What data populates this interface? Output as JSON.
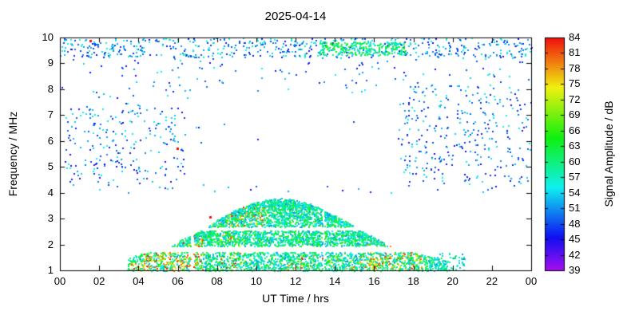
{
  "chart_data": {
    "type": "heatmap",
    "title": "2025-04-14",
    "xlabel": "UT Time / hrs",
    "ylabel": "Frequency / MHz",
    "x_range": [
      0,
      24
    ],
    "y_range": [
      1,
      10
    ],
    "x_ticks": {
      "values": [
        0,
        2,
        4,
        6,
        8,
        10,
        12,
        14,
        16,
        18,
        20,
        22,
        24
      ],
      "labels": [
        "00",
        "02",
        "04",
        "06",
        "08",
        "10",
        "12",
        "14",
        "16",
        "18",
        "20",
        "22",
        "00"
      ]
    },
    "y_ticks": {
      "values": [
        1,
        2,
        3,
        4,
        5,
        6,
        7,
        8,
        9,
        10
      ],
      "labels": [
        "1",
        "2",
        "3",
        "4",
        "5",
        "6",
        "7",
        "8",
        "9",
        "10"
      ]
    },
    "colorbar": {
      "label": "Signal Amplitude / dB",
      "min": 39,
      "max": 84,
      "ticks": [
        39,
        42,
        45,
        48,
        51,
        54,
        57,
        60,
        63,
        66,
        69,
        72,
        75,
        78,
        81,
        84
      ]
    },
    "description": "Ionospheric sounding spectrogram: dense arch-shaped echo trace from ~03:30 to ~19:30 UT below ~3.9 MHz with layered bands and hot (orange/red) patches, sparse blue/cyan noise speckle at higher frequencies, and a persistent speckle band near 9.3-10 MHz",
    "render": {
      "seed": 20250414,
      "point_size": 2,
      "envelope": {
        "base_f": 1.1,
        "amp": 2.7,
        "peak_t": 11.2,
        "sigma": 5.3,
        "t_start": 3.4,
        "t_end": 19.6
      },
      "freq_gaps": [
        [
          1.72,
          1.95
        ],
        [
          2.55,
          2.7
        ]
      ],
      "time_gaps": [
        [
          6.62,
          6.8
        ],
        [
          13.35,
          13.45
        ]
      ],
      "bands": [
        {
          "name": "bottom",
          "f_min": 1.0,
          "f_max": 1.72,
          "count": 1700,
          "tolerance": 0.12
        },
        {
          "name": "middle",
          "f_min": 1.95,
          "f_max": 2.55,
          "count": 1300,
          "tolerance": -0.05
        },
        {
          "name": "upper",
          "f_min": 2.7,
          "f_max": 3.92,
          "count": 1150,
          "tolerance": -0.03
        },
        {
          "name": "fill",
          "f_min": 1.0,
          "f_max": 3.92,
          "count": 650,
          "tolerance": 0
        }
      ],
      "outline": {
        "t_min": 6.0,
        "t_max": 16.5,
        "depth": 0.28,
        "count": 550
      },
      "amp_base": [
        51,
        66
      ],
      "amp_hot": [
        69,
        84
      ],
      "hot_clusters": [
        {
          "t_min": 4.2,
          "t_max": 7.3,
          "f_min": 1.0,
          "f_max": 2.4,
          "prob": 0.45
        },
        {
          "t_min": 7.3,
          "t_max": 10.4,
          "f_min": 2.72,
          "f_max": 3.5,
          "prob": 0.3
        },
        {
          "t_min": 15.6,
          "t_max": 18.4,
          "f_min": 1.05,
          "f_max": 2.3,
          "prob": 0.33
        },
        {
          "t_min": 3.5,
          "t_max": 4.5,
          "f_min": 0.98,
          "f_max": 1.3,
          "prob": 0.5
        },
        {
          "t_min": 11.5,
          "t_max": 15.5,
          "f_min": 1.0,
          "f_max": 1.6,
          "prob": 0.15
        },
        {
          "t_min": 8.0,
          "t_max": 9.2,
          "f_min": 1.0,
          "f_max": 2.5,
          "prob": 0.18
        }
      ],
      "noise": {
        "top_band": {
          "t_min": 0,
          "t_max": 24,
          "f_min": 9.25,
          "f_max": 10,
          "count": 600,
          "amp": [
            45,
            58
          ]
        },
        "top_green": {
          "t_min": 13.2,
          "t_max": 17.6,
          "f_min": 9.35,
          "f_max": 9.85,
          "count": 260,
          "amp": [
            54,
            66
          ]
        },
        "scatter": {
          "t_min": 0,
          "t_max": 24,
          "f_min": 4,
          "f_max": 9.3,
          "count": 420,
          "amp": [
            44,
            56
          ],
          "hole": {
            "t_min": 6.5,
            "t_max": 17.5,
            "f_min": 4.3,
            "f_max": 7.9,
            "keep": 0.08
          }
        },
        "left_patch": {
          "t_min": 0.2,
          "t_max": 6.3,
          "f_min": 4.4,
          "f_max": 7.3,
          "count": 170,
          "amp": [
            44,
            56
          ]
        },
        "right_patch": {
          "t_min": 17.2,
          "t_max": 24,
          "f_min": 4.4,
          "f_max": 8.2,
          "count": 230,
          "amp": [
            44,
            56
          ]
        },
        "tail_patch": {
          "t_min": 18.8,
          "t_max": 20.6,
          "f_min": 1.0,
          "f_max": 1.7,
          "count": 70,
          "amp": [
            50,
            62
          ]
        }
      },
      "red_specks": [
        {
          "t": 1.5,
          "f": 9.92
        },
        {
          "t": 5.95,
          "f": 5.75
        },
        {
          "t": 7.6,
          "f": 3.1
        }
      ]
    }
  }
}
